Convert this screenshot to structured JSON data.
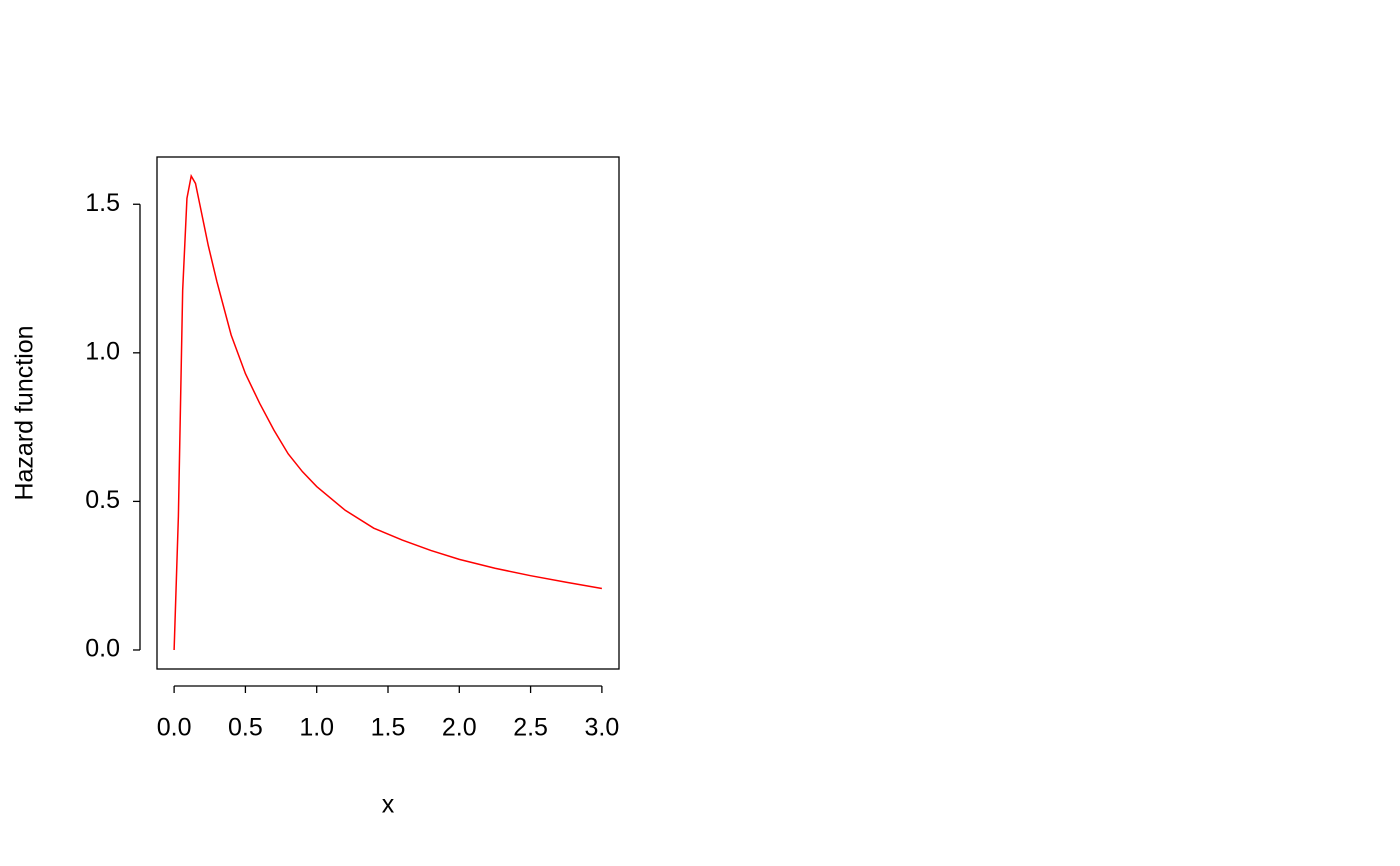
{
  "chart_data": {
    "type": "line",
    "x_label": "x",
    "y_label": "Hazard function",
    "x": [
      0,
      0.03,
      0.06,
      0.09,
      0.12,
      0.15,
      0.18,
      0.21,
      0.24,
      0.3,
      0.4,
      0.5,
      0.6,
      0.7,
      0.8,
      0.9,
      1.0,
      1.2,
      1.4,
      1.6,
      1.8,
      2.0,
      2.25,
      2.5,
      2.75,
      3.0
    ],
    "series": [
      {
        "color": "#ff0000",
        "values": [
          0,
          0.45,
          1.21,
          1.52,
          1.595,
          1.57,
          1.5,
          1.43,
          1.36,
          1.24,
          1.06,
          0.93,
          0.83,
          0.74,
          0.66,
          0.6,
          0.55,
          0.47,
          0.41,
          0.37,
          0.335,
          0.305,
          0.275,
          0.25,
          0.228,
          0.207
        ]
      }
    ],
    "xlim": [
      -0.12,
      3.12
    ],
    "ylim": [
      -0.064,
      1.659
    ],
    "xticks": [
      {
        "value": 0,
        "label": "0.0"
      },
      0.5,
      {
        "value": 1,
        "label": "1.0"
      },
      1.5,
      {
        "value": 2,
        "label": "2.0"
      },
      2.5,
      {
        "value": 3,
        "label": "3.0"
      }
    ],
    "yticks": [
      {
        "value": 0,
        "label": "0.0"
      },
      0.5,
      {
        "value": 1,
        "label": "1.0"
      },
      1.5
    ]
  }
}
